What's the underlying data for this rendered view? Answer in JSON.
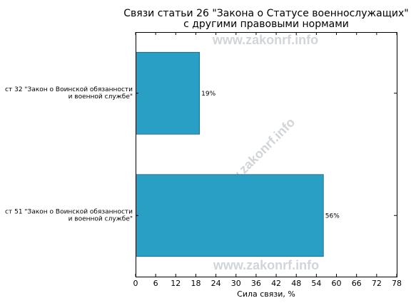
{
  "chart_data": {
    "type": "bar",
    "orientation": "horizontal",
    "title_lines": [
      "Связи статьи 26 \"Закона о Статусе военнослужащих\"",
      "с другими правовыми нормами"
    ],
    "xlabel": "Сила связи, %",
    "ylabel": "",
    "xlim": [
      0,
      78
    ],
    "xticks": [
      0,
      6,
      12,
      18,
      24,
      30,
      36,
      42,
      48,
      54,
      60,
      66,
      72,
      78
    ],
    "categories": [
      {
        "label_lines": [
          "ст 32 \"Закон о Воинской обязанности",
          "и военной службе\""
        ],
        "value": 19,
        "value_label": "19%"
      },
      {
        "label_lines": [
          "ст 51 \"Закон о Воинской обязанности",
          "и военной службе\""
        ],
        "value": 56,
        "value_label": "56%"
      }
    ],
    "bar_color": "#2a9fc5",
    "grid": false,
    "legend": "none"
  },
  "watermarks": [
    "www.zakonrf.info"
  ]
}
